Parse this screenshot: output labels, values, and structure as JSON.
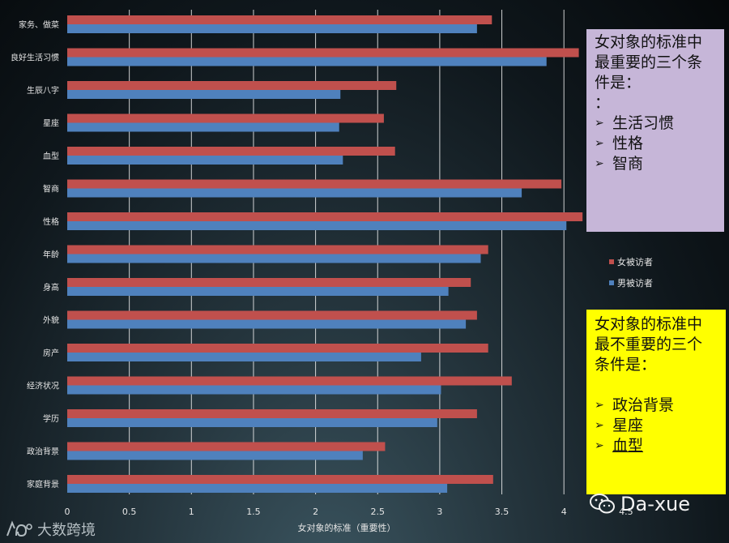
{
  "chart_data": {
    "type": "bar",
    "orientation": "horizontal",
    "categories": [
      "家务、做菜",
      "良好生活习惯",
      "生辰八字",
      "星座",
      "血型",
      "智商",
      "性格",
      "年龄",
      "身高",
      "外貌",
      "房产",
      "经济状况",
      "学历",
      "政治背景",
      "家庭背景"
    ],
    "series": [
      {
        "name": "女被访者",
        "color": "#c0504d",
        "values": [
          3.42,
          4.12,
          2.65,
          2.55,
          2.64,
          3.98,
          4.15,
          3.39,
          3.25,
          3.3,
          3.39,
          3.58,
          3.3,
          2.56,
          3.43
        ]
      },
      {
        "name": "男被访者",
        "color": "#4f81bd",
        "values": [
          3.3,
          3.86,
          2.2,
          2.19,
          2.22,
          3.66,
          4.02,
          3.33,
          3.07,
          3.21,
          2.85,
          3.01,
          2.98,
          2.38,
          3.06
        ]
      }
    ],
    "xticks": [
      "0",
      "0.5",
      "1",
      "1.5",
      "2",
      "2.5",
      "3",
      "3.5",
      "4",
      "4.5"
    ],
    "xlim": [
      0,
      4.5
    ],
    "xlabel": "女对象的标准（重要性）",
    "grid": true,
    "legend_position": "right"
  },
  "notes": {
    "top": {
      "title": "女对象的标准中\n最重要的三个条\n件是：\n：",
      "items": [
        "生活习惯",
        "性格",
        "智商"
      ],
      "bg": "#c6b6d8"
    },
    "bottom": {
      "title": "女对象的标准中\n最不重要的三个\n条件是：",
      "items": [
        "政治背景",
        "星座",
        "血型"
      ],
      "bg": "#ffff00"
    },
    "bullet": "➢"
  },
  "watermark": {
    "left_text": "大数跨境",
    "right_text": "Da-xue"
  }
}
